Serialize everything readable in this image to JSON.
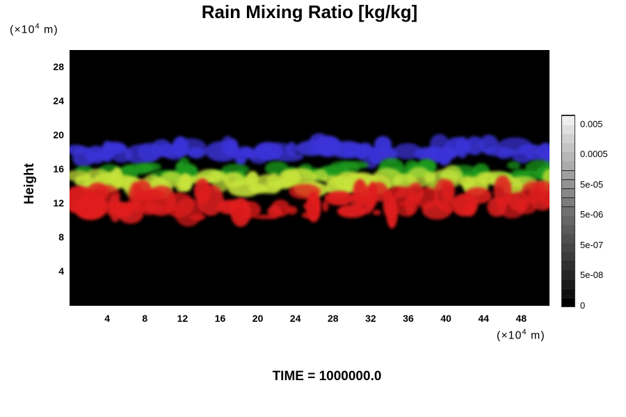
{
  "chart_data": {
    "type": "heatmap",
    "title": "Rain Mixing Ratio [kg/kg]",
    "ylabel": "Height",
    "x_unit_prefix": "(×10",
    "x_unit_exp": "4",
    "x_unit_suffix": " m)",
    "y_unit_prefix": "(×10",
    "y_unit_exp": "4",
    "y_unit_suffix": " m)",
    "xlim": [
      0,
      51
    ],
    "ylim": [
      0,
      30
    ],
    "x_ticks": [
      "4",
      "8",
      "12",
      "16",
      "20",
      "24",
      "28",
      "32",
      "36",
      "40",
      "44",
      "48"
    ],
    "y_ticks": [
      "4",
      "8",
      "12",
      "16",
      "20",
      "24",
      "28"
    ],
    "time_label": "TIME = 1000000.0",
    "colorbar": {
      "labels": [
        "0.005",
        "0.0005",
        "5e-05",
        "5e-06",
        "5e-07",
        "5e-08",
        "0"
      ],
      "colors": [
        "#000000",
        "#0f0f0f",
        "#1b1b1b",
        "#262626",
        "#303030",
        "#3b3b3b",
        "#454545",
        "#505050",
        "#5b5b5b",
        "#666666",
        "#717171",
        "#7c7c7c",
        "#888888",
        "#939393",
        "#9f9f9f",
        "#ababab",
        "#b7b7b7",
        "#c4c4c4",
        "#d1d1d1",
        "#dfdfdf",
        "#eeeeee"
      ]
    },
    "bands": [
      {
        "color": "#3a33d8",
        "y_center": 18.2,
        "thickness": 2.2
      },
      {
        "color": "#1b9a1b",
        "y_center": 15.8,
        "thickness": 1.8
      },
      {
        "color": "#c6e23a",
        "y_center": 14.5,
        "thickness": 2.2
      },
      {
        "color": "#e01d1d",
        "y_center": 12.2,
        "thickness": 3.2
      }
    ]
  }
}
